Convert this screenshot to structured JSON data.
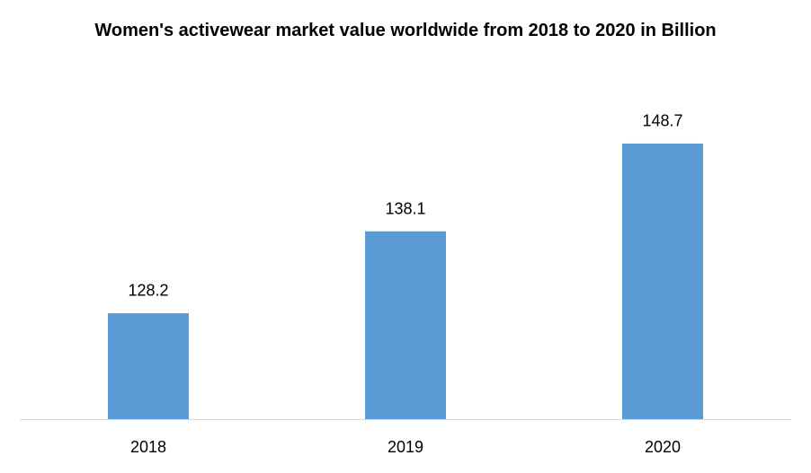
{
  "chart_data": {
    "type": "bar",
    "title": "Women's activewear market value worldwide from 2018 to 2020 in Billion",
    "categories": [
      "2018",
      "2019",
      "2020"
    ],
    "values": [
      128.2,
      138.1,
      148.7
    ],
    "color": "#5b9bd5",
    "ylim": [
      115.4,
      150
    ]
  }
}
